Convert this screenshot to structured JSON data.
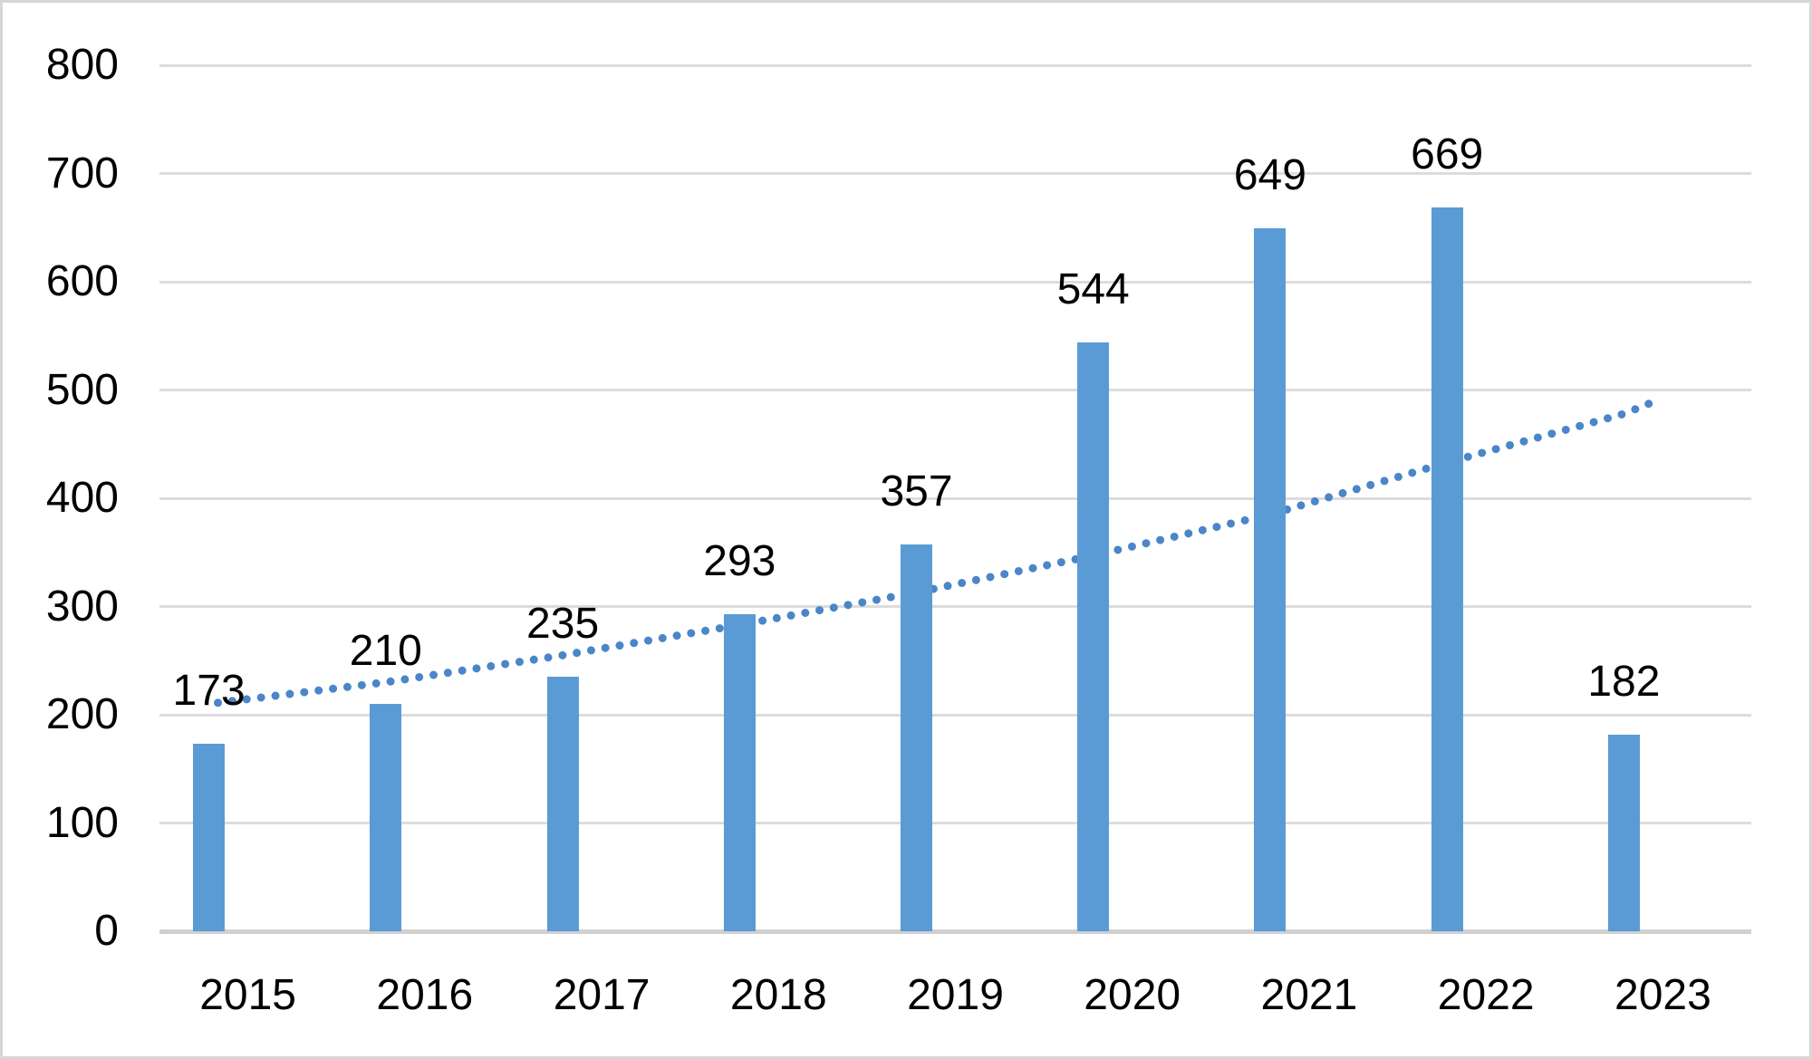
{
  "chart_data": {
    "type": "bar",
    "title": "",
    "xlabel": "",
    "ylabel": "",
    "categories": [
      "2015",
      "2016",
      "2017",
      "2018",
      "2019",
      "2020",
      "2021",
      "2022",
      "2023"
    ],
    "values": [
      173,
      210,
      235,
      293,
      357,
      544,
      649,
      669,
      182
    ],
    "data_labels": [
      "173",
      "210",
      "235",
      "293",
      "357",
      "544",
      "649",
      "669",
      "182"
    ],
    "yticks": [
      0,
      100,
      200,
      300,
      400,
      500,
      600,
      700,
      800
    ],
    "ylim": [
      0,
      800
    ],
    "grid": true,
    "legend": "none",
    "trendline": {
      "style": "dotted",
      "values_at_categories": [
        210,
        230,
        255,
        283,
        313,
        347,
        385,
        433,
        478
      ],
      "end_value": 489
    },
    "colors": {
      "bar": "#5b9bd5",
      "trendline": "#4a86c8",
      "gridline": "#dcdcdc",
      "axis_line": "#d0d0d0",
      "text": "#000000",
      "border": "#d6d6d6",
      "background": "#ffffff"
    }
  }
}
